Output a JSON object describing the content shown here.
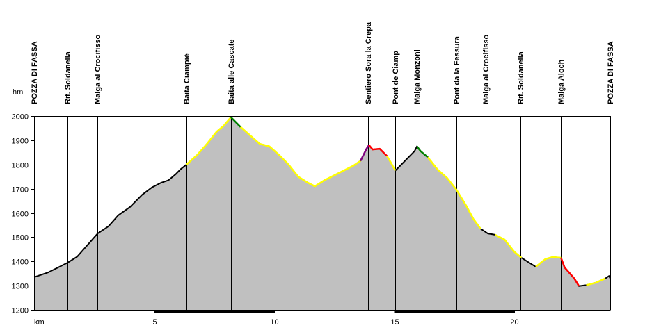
{
  "chart_data": {
    "type": "area",
    "title": "",
    "xlabel": "km",
    "ylabel": "hm",
    "xlim": [
      0,
      24
    ],
    "ylim": [
      1200,
      2000
    ],
    "x_ticks": [
      5,
      10,
      15,
      20
    ],
    "y_ticks": [
      1200,
      1300,
      1400,
      1500,
      1600,
      1700,
      1800,
      1900,
      2000
    ],
    "fill_color": "#c0c0c0",
    "line_color": "#000000",
    "grid": false,
    "waypoints": [
      {
        "km": 0.0,
        "label": "POZZA DI FASSA"
      },
      {
        "km": 1.4,
        "label": "Rif. Soldanella"
      },
      {
        "km": 2.65,
        "label": "Malga al Crocifisso"
      },
      {
        "km": 6.35,
        "label": "Baita Ciampiè"
      },
      {
        "km": 8.2,
        "label": "Baita alle Cascate"
      },
      {
        "km": 13.9,
        "label": "Sentiero Sora la Crepa"
      },
      {
        "km": 15.05,
        "label": "Pont de Ciamp"
      },
      {
        "km": 15.95,
        "label": "Malga Monzoni"
      },
      {
        "km": 17.6,
        "label": "Pont da la Fessura"
      },
      {
        "km": 18.8,
        "label": "Malga al Crocifisso"
      },
      {
        "km": 20.25,
        "label": "Rif. Soldanella"
      },
      {
        "km": 21.95,
        "label": "Malga Aloch"
      },
      {
        "km": 24.0,
        "label": "POZZA DI FASSA"
      }
    ],
    "profile": [
      [
        0.0,
        1335
      ],
      [
        0.6,
        1355
      ],
      [
        1.0,
        1375
      ],
      [
        1.4,
        1395
      ],
      [
        1.8,
        1420
      ],
      [
        2.2,
        1465
      ],
      [
        2.65,
        1515
      ],
      [
        3.1,
        1545
      ],
      [
        3.5,
        1590
      ],
      [
        4.0,
        1625
      ],
      [
        4.5,
        1675
      ],
      [
        4.9,
        1705
      ],
      [
        5.3,
        1725
      ],
      [
        5.6,
        1735
      ],
      [
        5.9,
        1760
      ],
      [
        6.1,
        1780
      ],
      [
        6.35,
        1800
      ],
      [
        6.8,
        1840
      ],
      [
        7.2,
        1885
      ],
      [
        7.6,
        1935
      ],
      [
        7.9,
        1960
      ],
      [
        8.2,
        1995
      ],
      [
        8.6,
        1955
      ],
      [
        9.0,
        1920
      ],
      [
        9.4,
        1885
      ],
      [
        9.8,
        1875
      ],
      [
        10.2,
        1840
      ],
      [
        10.6,
        1800
      ],
      [
        11.0,
        1750
      ],
      [
        11.4,
        1725
      ],
      [
        11.7,
        1710
      ],
      [
        12.1,
        1735
      ],
      [
        12.5,
        1755
      ],
      [
        12.9,
        1775
      ],
      [
        13.3,
        1795
      ],
      [
        13.6,
        1815
      ],
      [
        13.85,
        1865
      ],
      [
        13.95,
        1880
      ],
      [
        14.1,
        1862
      ],
      [
        14.4,
        1865
      ],
      [
        14.7,
        1835
      ],
      [
        14.85,
        1810
      ],
      [
        15.05,
        1775
      ],
      [
        15.3,
        1800
      ],
      [
        15.6,
        1830
      ],
      [
        15.85,
        1855
      ],
      [
        15.95,
        1875
      ],
      [
        16.1,
        1855
      ],
      [
        16.4,
        1830
      ],
      [
        16.8,
        1780
      ],
      [
        17.2,
        1745
      ],
      [
        17.6,
        1695
      ],
      [
        18.0,
        1630
      ],
      [
        18.3,
        1575
      ],
      [
        18.6,
        1535
      ],
      [
        18.9,
        1515
      ],
      [
        19.2,
        1510
      ],
      [
        19.6,
        1490
      ],
      [
        20.0,
        1440
      ],
      [
        20.3,
        1415
      ],
      [
        20.7,
        1390
      ],
      [
        20.9,
        1378
      ],
      [
        21.3,
        1410
      ],
      [
        21.6,
        1418
      ],
      [
        21.95,
        1415
      ],
      [
        22.1,
        1375
      ],
      [
        22.5,
        1330
      ],
      [
        22.7,
        1298
      ],
      [
        23.0,
        1302
      ],
      [
        23.4,
        1312
      ],
      [
        23.8,
        1330
      ],
      [
        23.95,
        1340
      ],
      [
        24.0,
        1330
      ]
    ],
    "colored_segments": [
      {
        "color": "#ffff00",
        "from": 6.35,
        "to": 8.2
      },
      {
        "color": "#008000",
        "from": 8.2,
        "to": 8.6
      },
      {
        "color": "#ffff00",
        "from": 8.6,
        "to": 13.6
      },
      {
        "color": "#800080",
        "from": 13.6,
        "to": 13.95
      },
      {
        "color": "#ff0000",
        "from": 13.95,
        "to": 14.7
      },
      {
        "color": "#ffff00",
        "from": 14.7,
        "to": 15.05
      },
      {
        "color": "#008000",
        "from": 15.95,
        "to": 16.4
      },
      {
        "color": "#ffff00",
        "from": 16.4,
        "to": 18.6
      },
      {
        "color": "#ffff00",
        "from": 19.2,
        "to": 20.3
      },
      {
        "color": "#ffff00",
        "from": 20.9,
        "to": 21.95
      },
      {
        "color": "#ff0000",
        "from": 21.95,
        "to": 22.7
      },
      {
        "color": "#ffff00",
        "from": 23.0,
        "to": 23.8
      }
    ],
    "axis_bar_segments": [
      {
        "from": 5.0,
        "to": 10.0
      },
      {
        "from": 15.0,
        "to": 20.0
      }
    ]
  }
}
